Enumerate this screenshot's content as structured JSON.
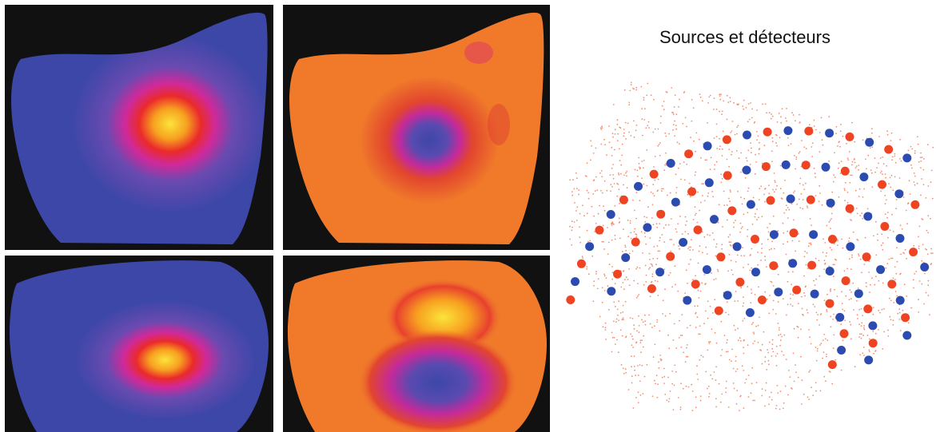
{
  "right_panel": {
    "title": "Sources et détecteurs"
  },
  "colors": {
    "background_panel": "#111111",
    "blue_map_base": "#3c47a8",
    "orange_map_base": "#f07a2a",
    "hot_core": "#fbe43a",
    "source_color": "#ee4422",
    "detector_color": "#2c4bb0",
    "mesh_dot_color": "#f09070"
  }
}
